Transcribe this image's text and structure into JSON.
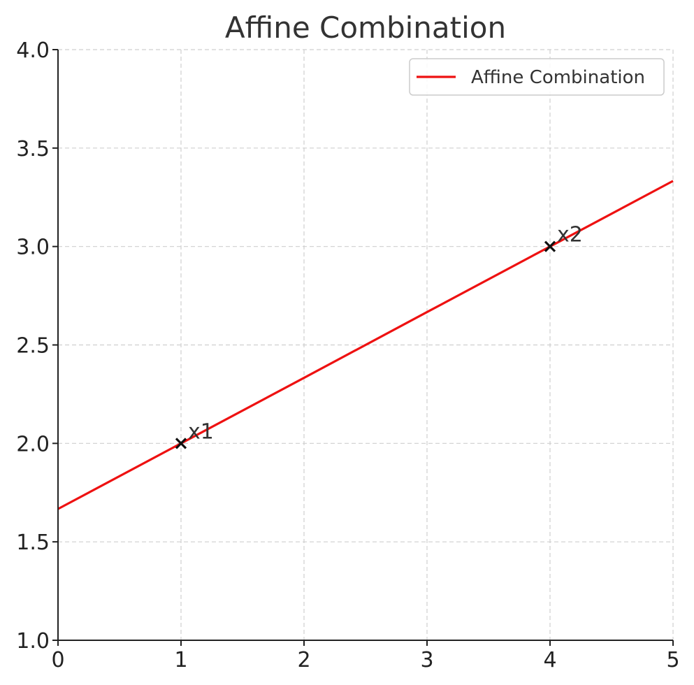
{
  "chart_data": {
    "type": "line",
    "title": "Affine Combination",
    "xlabel": "",
    "ylabel": "",
    "xlim": [
      0,
      5
    ],
    "ylim": [
      1.0,
      4.0
    ],
    "x_ticks": [
      "0",
      "1",
      "2",
      "3",
      "4",
      "5"
    ],
    "y_ticks": [
      "1.0",
      "1.5",
      "2.0",
      "2.5",
      "3.0",
      "3.5",
      "4.0"
    ],
    "grid": true,
    "legend_position": "top-right",
    "series": [
      {
        "name": "Affine Combination",
        "color": "#ee1111",
        "x": [
          0,
          1,
          2,
          3,
          4,
          5
        ],
        "y": [
          1.667,
          2.0,
          2.333,
          2.667,
          3.0,
          3.333
        ]
      }
    ],
    "points": [
      {
        "label": "x1",
        "x": 1,
        "y": 2.0,
        "marker": "x",
        "color": "#111111"
      },
      {
        "label": "x2",
        "x": 4,
        "y": 3.0,
        "marker": "x",
        "color": "#111111"
      }
    ]
  }
}
